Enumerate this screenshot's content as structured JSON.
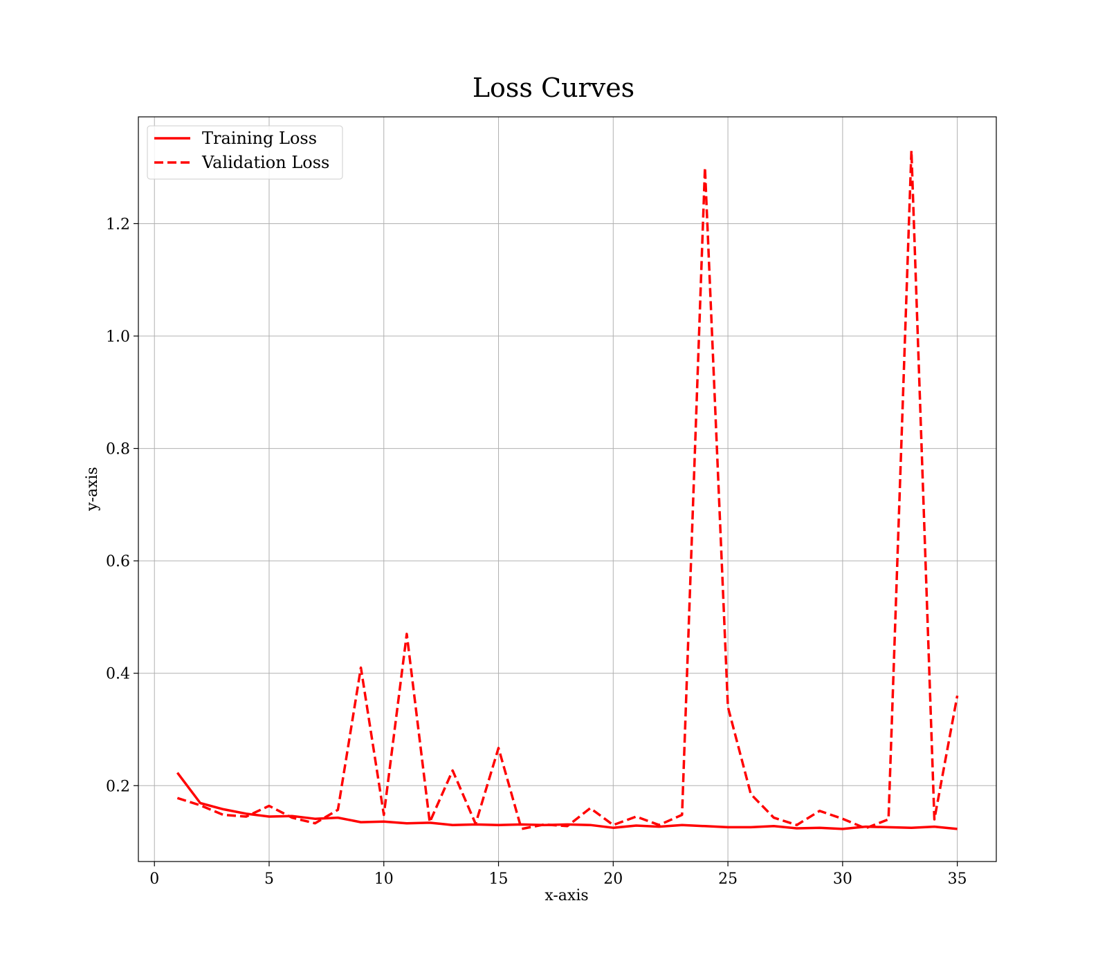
{
  "chart_data": {
    "type": "line",
    "title": "Loss Curves",
    "xlabel": "x-axis",
    "ylabel": "y-axis",
    "xlim": [
      -0.7,
      36.7
    ],
    "ylim": [
      0.065,
      1.39
    ],
    "xticks": [
      0,
      5,
      10,
      15,
      20,
      25,
      30,
      35
    ],
    "yticks": [
      0.2,
      0.4,
      0.6,
      0.8,
      1.0,
      1.2
    ],
    "ytick_labels": [
      "0.2",
      "0.4",
      "0.6",
      "0.8",
      "1.0",
      "1.2"
    ],
    "grid": true,
    "legend_position": "top-left",
    "x": [
      1,
      2,
      3,
      4,
      5,
      6,
      7,
      8,
      9,
      10,
      11,
      12,
      13,
      14,
      15,
      16,
      17,
      18,
      19,
      20,
      21,
      22,
      23,
      24,
      25,
      26,
      27,
      28,
      29,
      30,
      31,
      32,
      33,
      34,
      35
    ],
    "series": [
      {
        "name": "Training Loss",
        "color": "#ff0000",
        "line_style": "solid",
        "values": [
          0.223,
          0.169,
          0.158,
          0.15,
          0.145,
          0.146,
          0.141,
          0.143,
          0.135,
          0.136,
          0.133,
          0.134,
          0.13,
          0.131,
          0.13,
          0.131,
          0.13,
          0.131,
          0.13,
          0.125,
          0.129,
          0.127,
          0.13,
          0.128,
          0.126,
          0.126,
          0.128,
          0.124,
          0.125,
          0.123,
          0.127,
          0.126,
          0.125,
          0.127,
          0.123
        ]
      },
      {
        "name": "Validation Loss",
        "color": "#ff0000",
        "line_style": "dashed",
        "values": [
          0.178,
          0.165,
          0.148,
          0.145,
          0.164,
          0.143,
          0.133,
          0.157,
          0.41,
          0.148,
          0.47,
          0.135,
          0.227,
          0.132,
          0.267,
          0.123,
          0.131,
          0.128,
          0.16,
          0.13,
          0.145,
          0.13,
          0.148,
          1.3,
          0.34,
          0.185,
          0.143,
          0.13,
          0.155,
          0.141,
          0.124,
          0.14,
          1.33,
          0.14,
          0.36
        ]
      }
    ]
  }
}
